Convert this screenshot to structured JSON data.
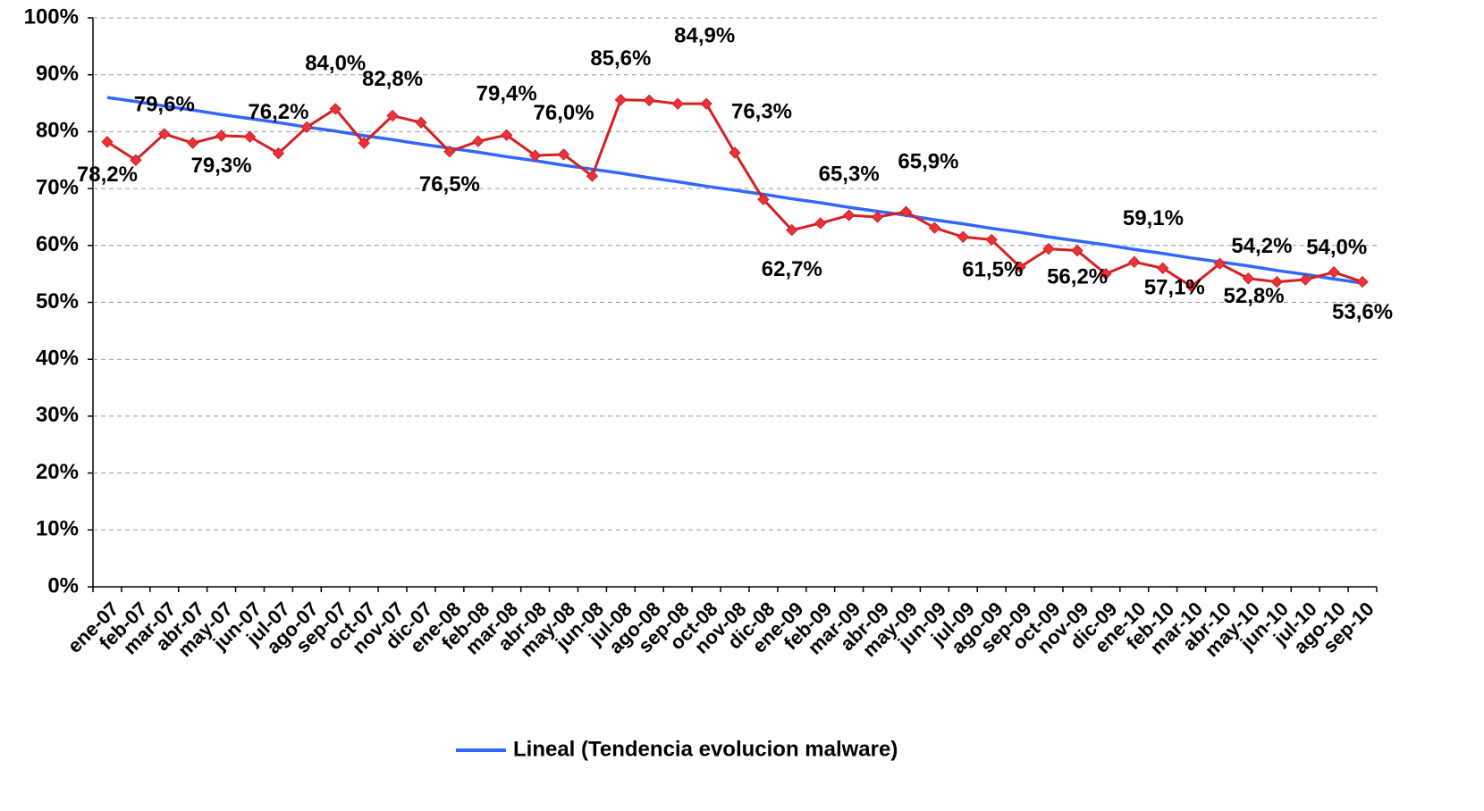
{
  "chart_data": {
    "type": "line",
    "categories": [
      "ene-07",
      "feb-07",
      "mar-07",
      "abr-07",
      "may-07",
      "jun-07",
      "jul-07",
      "ago-07",
      "sep-07",
      "oct-07",
      "nov-07",
      "dic-07",
      "ene-08",
      "feb-08",
      "mar-08",
      "abr-08",
      "may-08",
      "jun-08",
      "jul-08",
      "ago-08",
      "sep-08",
      "oct-08",
      "nov-08",
      "dic-08",
      "ene-09",
      "feb-09",
      "mar-09",
      "abr-09",
      "may-09",
      "jun-09",
      "jul-09",
      "ago-09",
      "sep-09",
      "oct-09",
      "nov-09",
      "dic-09",
      "ene-10",
      "feb-10",
      "mar-10",
      "abr-10",
      "may-10",
      "jun-10",
      "jul-10",
      "ago-10",
      "sep-10"
    ],
    "series": [
      {
        "color": "#d42020",
        "values": [
          78.2,
          75.0,
          79.6,
          78.0,
          79.3,
          79.1,
          76.2,
          80.8,
          84.0,
          78.0,
          82.8,
          81.6,
          76.5,
          78.3,
          79.4,
          75.8,
          76.0,
          72.2,
          85.6,
          85.5,
          84.9,
          84.9,
          76.3,
          68.1,
          62.7,
          63.9,
          65.3,
          65.0,
          65.9,
          63.1,
          61.5,
          61.0,
          56.2,
          59.4,
          59.1,
          55.0,
          57.1,
          56.0,
          52.8,
          56.8,
          54.2,
          53.6,
          54.0,
          55.3,
          53.6
        ],
        "value_labels": [
          "78,2%",
          null,
          "79,6%",
          null,
          "79,3%",
          null,
          "76,2%",
          null,
          "84,0%",
          null,
          "82,8%",
          null,
          "76,5%",
          null,
          "79,4%",
          null,
          "76,0%",
          null,
          "85,6%",
          null,
          "84,9%",
          null,
          "76,3%",
          null,
          "62,7%",
          null,
          "65,3%",
          null,
          "65,9%",
          null,
          "61,5%",
          null,
          "56,2%",
          null,
          "59,1%",
          null,
          "57,1%",
          null,
          "52,8%",
          null,
          "54,2%",
          null,
          "54,0%",
          null,
          "53,6%"
        ]
      },
      {
        "name": "Lineal (Tendencia evolucion malware)",
        "color": "#3366ff",
        "values": [
          86.0,
          85.3,
          84.5,
          83.8,
          83.0,
          82.3,
          81.6,
          80.8,
          80.1,
          79.3,
          78.6,
          77.8,
          77.1,
          76.4,
          75.6,
          74.9,
          74.1,
          73.4,
          72.7,
          71.9,
          71.2,
          70.4,
          69.7,
          69.0,
          68.2,
          67.5,
          66.7,
          66.0,
          65.3,
          64.5,
          63.8,
          63.0,
          62.3,
          61.5,
          60.8,
          60.1,
          59.3,
          58.6,
          57.8,
          57.1,
          56.4,
          55.6,
          54.9,
          54.1,
          53.4
        ]
      }
    ],
    "ylim": [
      0,
      100
    ],
    "yticks": [
      {
        "value": 0,
        "label": "0%"
      },
      {
        "value": 10,
        "label": "10%"
      },
      {
        "value": 20,
        "label": "20%"
      },
      {
        "value": 30,
        "label": "30%"
      },
      {
        "value": 40,
        "label": "40%"
      },
      {
        "value": 50,
        "label": "50%"
      },
      {
        "value": 60,
        "label": "60%"
      },
      {
        "value": 70,
        "label": "70%"
      },
      {
        "value": 80,
        "label": "80%"
      },
      {
        "value": 90,
        "label": "90%"
      },
      {
        "value": 100,
        "label": "100%"
      }
    ],
    "grid": true,
    "legend": "bottom"
  }
}
